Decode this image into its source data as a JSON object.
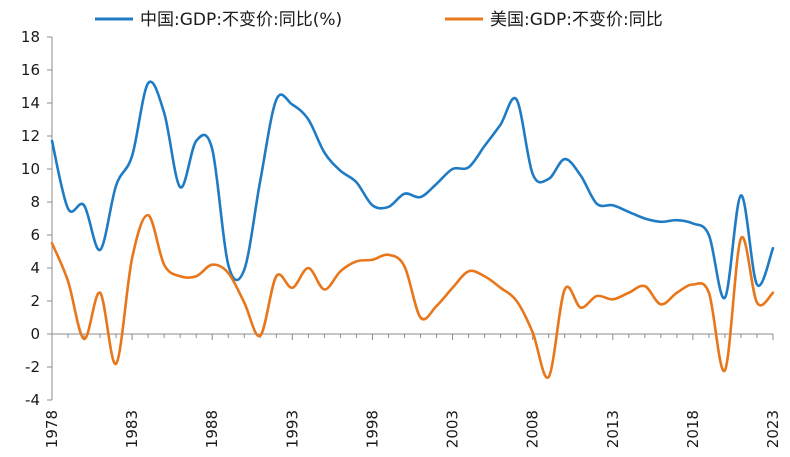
{
  "chart_data": {
    "type": "line",
    "title": "",
    "xlabel": "",
    "ylabel": "",
    "ylim": [
      -4,
      18
    ],
    "yticks": [
      -4,
      -2,
      0,
      2,
      4,
      6,
      8,
      10,
      12,
      14,
      16,
      18
    ],
    "xlim": [
      1978,
      2023
    ],
    "xticks": [
      1978,
      1983,
      1988,
      1993,
      1998,
      2003,
      2008,
      2013,
      2018,
      2023
    ],
    "legend_position": "top",
    "x": [
      1978,
      1979,
      1980,
      1981,
      1982,
      1983,
      1984,
      1985,
      1986,
      1987,
      1988,
      1989,
      1990,
      1991,
      1992,
      1993,
      1994,
      1995,
      1996,
      1997,
      1998,
      1999,
      2000,
      2001,
      2002,
      2003,
      2004,
      2005,
      2006,
      2007,
      2008,
      2009,
      2010,
      2011,
      2012,
      2013,
      2014,
      2015,
      2016,
      2017,
      2018,
      2019,
      2020,
      2021,
      2022,
      2023
    ],
    "series": [
      {
        "name": "中国:GDP:不变价:同比(%)",
        "color": "#1f7bc4",
        "values": [
          11.7,
          7.6,
          7.8,
          5.1,
          9.0,
          10.8,
          15.2,
          13.4,
          8.9,
          11.7,
          11.2,
          4.2,
          3.9,
          9.3,
          14.2,
          13.9,
          13.0,
          11.0,
          9.9,
          9.2,
          7.8,
          7.7,
          8.5,
          8.3,
          9.1,
          10.0,
          10.1,
          11.4,
          12.7,
          14.2,
          9.7,
          9.4,
          10.6,
          9.6,
          7.9,
          7.8,
          7.4,
          7.0,
          6.8,
          6.9,
          6.7,
          6.0,
          2.2,
          8.4,
          3.0,
          5.2
        ]
      },
      {
        "name": "美国:GDP:不变价:同比",
        "color": "#e8771b",
        "values": [
          5.5,
          3.2,
          -0.3,
          2.5,
          -1.8,
          4.6,
          7.2,
          4.2,
          3.5,
          3.5,
          4.2,
          3.7,
          1.9,
          -0.1,
          3.5,
          2.8,
          4.0,
          2.7,
          3.8,
          4.4,
          4.5,
          4.8,
          4.1,
          1.0,
          1.7,
          2.8,
          3.8,
          3.5,
          2.8,
          2.0,
          0.1,
          -2.6,
          2.7,
          1.6,
          2.3,
          2.1,
          2.5,
          2.9,
          1.8,
          2.5,
          3.0,
          2.5,
          -2.2,
          5.8,
          1.9,
          2.5
        ]
      }
    ]
  }
}
